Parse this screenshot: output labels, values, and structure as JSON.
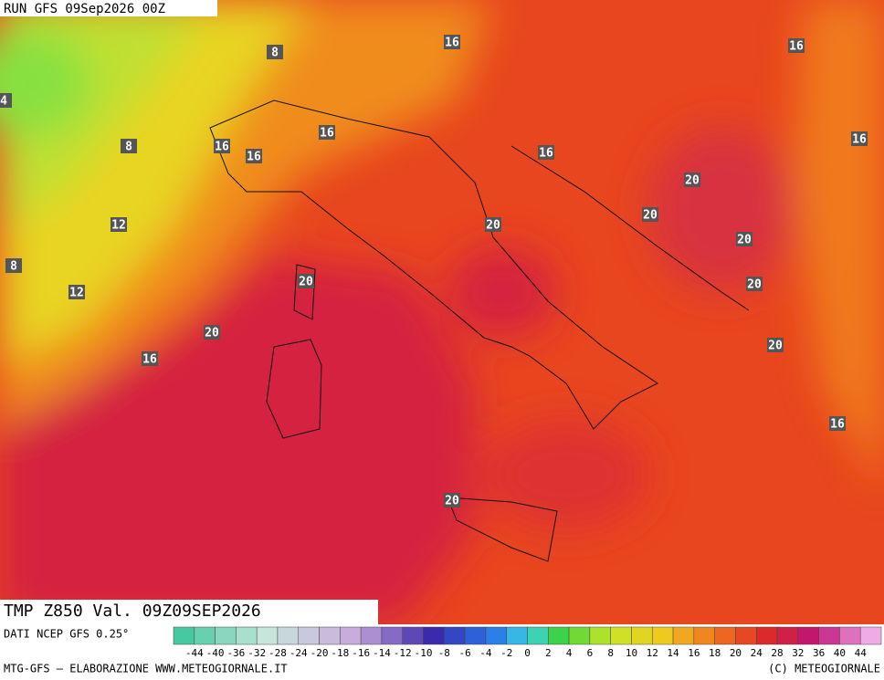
{
  "header": {
    "run": "RUN GFS 09Sep2026 00Z"
  },
  "map": {
    "contour_labels": [
      16,
      16,
      8,
      4,
      16,
      16,
      16,
      16,
      16,
      8,
      20,
      20,
      20,
      12,
      20,
      8,
      20,
      20,
      12,
      20,
      20,
      16,
      16,
      20
    ]
  },
  "footer": {
    "field": "TMP Z850 Val. 09Z09SEP2026",
    "source": "DATI NCEP GFS 0.25°",
    "credit_left": "MTG-GFS — ELABORAZIONE WWW.METEOGIORNALE.IT",
    "credit_right": "(C) METEOGIORNALE"
  },
  "colorbar": {
    "labels": [
      -44,
      -40,
      -36,
      -32,
      -28,
      -24,
      -20,
      -18,
      -16,
      -14,
      -12,
      -10,
      -8,
      -6,
      -4,
      -2,
      0,
      2,
      4,
      6,
      8,
      10,
      12,
      14,
      16,
      18,
      20,
      24,
      28,
      32,
      36,
      40,
      44
    ]
  }
}
